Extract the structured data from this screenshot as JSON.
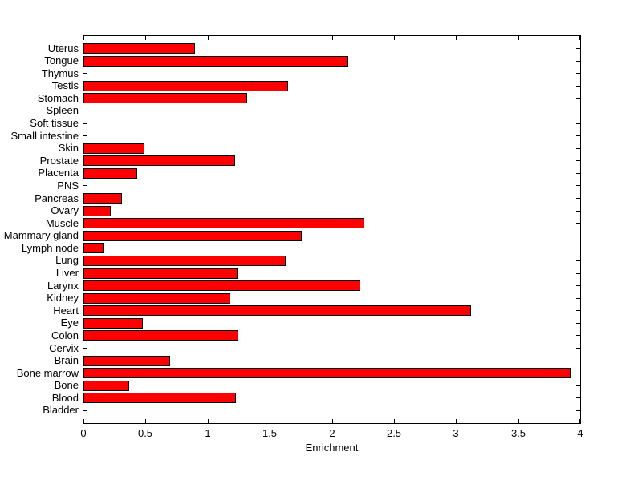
{
  "chart_data": {
    "type": "bar",
    "orientation": "horizontal",
    "title": "",
    "xlabel": "Enrichment",
    "ylabel": "",
    "xlim": [
      0,
      4
    ],
    "xtick_labels": [
      "0",
      "0.5",
      "1",
      "1.5",
      "2",
      "2.5",
      "3",
      "3.5",
      "4"
    ],
    "grid": false,
    "legend": false,
    "categories": [
      "Uterus",
      "Tongue",
      "Thymus",
      "Testis",
      "Stomach",
      "Spleen",
      "Soft tissue",
      "Small intestine",
      "Skin",
      "Prostate",
      "Placenta",
      "PNS",
      "Pancreas",
      "Ovary",
      "Muscle",
      "Mammary gland",
      "Lymph node",
      "Lung",
      "Liver",
      "Larynx",
      "Kidney",
      "Heart",
      "Eye",
      "Colon",
      "Cervix",
      "Brain",
      "Bone marrow",
      "Bone",
      "Blood",
      "Bladder"
    ],
    "values": [
      0.9,
      2.13,
      0,
      1.65,
      1.32,
      0,
      0,
      0,
      0.49,
      1.22,
      0.43,
      0,
      0.31,
      0.22,
      2.26,
      1.76,
      0.16,
      1.63,
      1.24,
      2.23,
      1.18,
      3.12,
      0.48,
      1.25,
      0,
      0.7,
      3.92,
      0.37,
      1.23,
      0
    ],
    "colors": {
      "bar_fill": "#ff0000",
      "bar_edge": "#000000",
      "axis": "#000000",
      "text": "#000000",
      "background": "#ffffff"
    }
  }
}
